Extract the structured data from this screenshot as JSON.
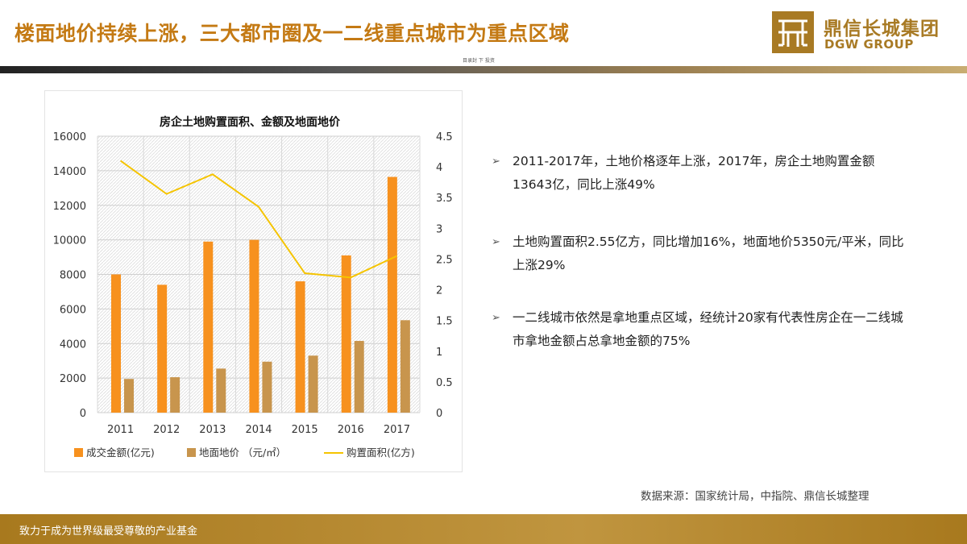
{
  "header": {
    "title": "楼面地价持续上涨，三大都市圈及一二线重点城市为重点区域",
    "tiny_caption": "目录封 下 投资",
    "logo_cn": "鼎信长城集团",
    "logo_en": "DGW GROUP"
  },
  "bullets": [
    {
      "text": "2011-2017年，土地价格逐年上涨，2017年，房企土地购置金额13643亿，同比上涨49%"
    },
    {
      "text": "土地购置面积2.55亿方，同比增加16%，地面地价5350元/平米，同比上涨29%"
    },
    {
      "text": "一二线城市依然是拿地重点区域，经统计20家有代表性房企在一二线城市拿地金额占总拿地金额的75%"
    }
  ],
  "source": "数据来源：国家统计局，中指院、鼎信长城整理",
  "footer": "致力于成为世界级最受尊敬的产业基金",
  "colors": {
    "bar1": "#f7911e",
    "bar2": "#c8954d",
    "line": "#f5c400",
    "accent": "#c47a14"
  },
  "chart_data": {
    "type": "bar",
    "title": "房企土地购置面积、金额及地面地价",
    "categories": [
      "2011",
      "2012",
      "2013",
      "2014",
      "2015",
      "2016",
      "2017"
    ],
    "ylim": [
      0,
      16000
    ],
    "y_ticks": [
      "0",
      "2000",
      "4000",
      "6000",
      "8000",
      "10000",
      "12000",
      "14000",
      "16000"
    ],
    "y2lim": [
      0,
      4.5
    ],
    "y2_ticks": [
      "0",
      "0.5",
      "1",
      "1.5",
      "2",
      "2.5",
      "3",
      "3.5",
      "4",
      "4.5"
    ],
    "grid": true,
    "legend_position": "bottom",
    "series": [
      {
        "name": "成交金额(亿元)",
        "type": "bar",
        "axis": "left",
        "values": [
          8000,
          7400,
          9900,
          10000,
          7600,
          9100,
          13643
        ]
      },
      {
        "name": "地面地价 （元/㎡）",
        "type": "bar",
        "axis": "left",
        "values": [
          1950,
          2050,
          2550,
          2950,
          3300,
          4150,
          5350
        ]
      },
      {
        "name": "购置面积(亿方)",
        "type": "line",
        "axis": "right",
        "values": [
          4.1,
          3.56,
          3.88,
          3.35,
          2.27,
          2.2,
          2.55
        ]
      }
    ]
  }
}
